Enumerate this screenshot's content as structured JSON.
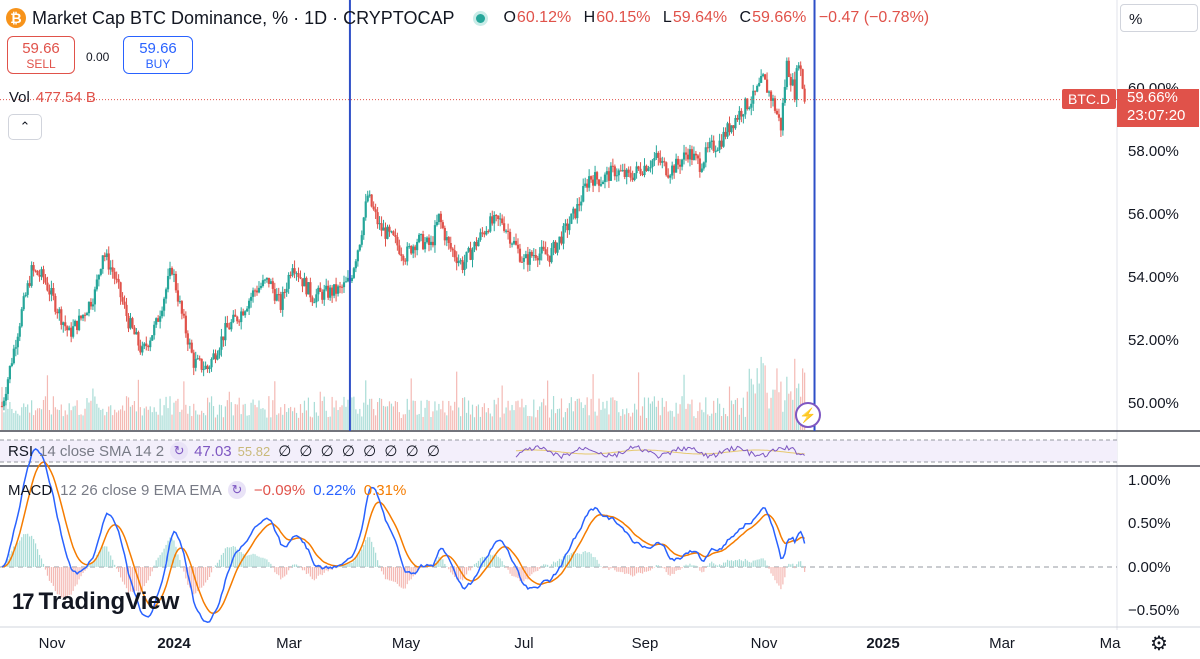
{
  "header": {
    "coin_icon": "bitcoin-icon",
    "coin_glyph": "₿",
    "symbol_title": "Market Cap BTC Dominance, % · 1D · CRYPTOCAP",
    "ohlc": {
      "o_label": "O",
      "o_value": "60.12%",
      "h_label": "H",
      "h_value": "60.15%",
      "l_label": "L",
      "l_value": "59.64%",
      "c_label": "C",
      "c_value": "59.66%",
      "change": "−0.47 (−0.78%)"
    },
    "live_status_color": "#26a69a"
  },
  "trade": {
    "sell_price": "59.66",
    "sell_label": "SELL",
    "spread": "0.00",
    "buy_price": "59.66",
    "buy_label": "BUY"
  },
  "volume": {
    "label": "Vol",
    "value": "477.54 B"
  },
  "collapse_icon": "chevron-up-icon",
  "collapse_glyph": "⌃",
  "scale_unit": "%",
  "price_tag": {
    "symbol": "BTC.D",
    "value": "59.66%",
    "countdown": "23:07:20"
  },
  "y_axis_labels": [
    "60.00%",
    "58.00%",
    "56.00%",
    "54.00%",
    "52.00%",
    "50.00%"
  ],
  "rsi": {
    "title": "RSI",
    "params": "14 close SMA 14 2",
    "value": "47.03",
    "sma_value": "55.82",
    "na_values": "∅ ∅ ∅ ∅ ∅ ∅ ∅ ∅"
  },
  "macd": {
    "title": "MACD",
    "params": "12 26 close 9 EMA EMA",
    "histogram": "−0.09%",
    "macd_line": "0.22%",
    "signal": "0.31%",
    "y_axis_labels": [
      "1.00%",
      "0.50%",
      "0.00%",
      "−0.50%"
    ]
  },
  "brand": {
    "name": "TradingView",
    "glyph": "17"
  },
  "x_axis_labels": [
    {
      "text": "Nov",
      "bold": false
    },
    {
      "text": "2024",
      "bold": true
    },
    {
      "text": "Mar",
      "bold": false
    },
    {
      "text": "May",
      "bold": false
    },
    {
      "text": "Jul",
      "bold": false
    },
    {
      "text": "Sep",
      "bold": false
    },
    {
      "text": "Nov",
      "bold": false
    },
    {
      "text": "2025",
      "bold": true
    },
    {
      "text": "Mar",
      "bold": false
    },
    {
      "text": "Ma",
      "bold": false
    }
  ],
  "settings_icon": "gear-icon",
  "settings_glyph": "⚙",
  "bolt_icon": "lightning-icon",
  "bolt_glyph": "⚡",
  "colors": {
    "up": "#26a69a",
    "down": "#e0524a",
    "macd": "#2962ff",
    "signal": "#f57c00",
    "rsi": "#7e57c2",
    "marker": "#2e4fc7"
  },
  "chart_data": {
    "type": "candlestick",
    "title": "Market Cap BTC Dominance, % · 1D · CRYPTOCAP",
    "x_range": [
      "2023-10-14",
      "2025-05-01"
    ],
    "y_range": [
      49.1,
      61.7
    ],
    "y_unit": "%",
    "close_series": [
      {
        "date": "2023-10-15",
        "value": 49.9
      },
      {
        "date": "2023-10-20",
        "value": 51.4
      },
      {
        "date": "2023-10-25",
        "value": 52.9
      },
      {
        "date": "2023-10-30",
        "value": 54.2
      },
      {
        "date": "2023-11-05",
        "value": 54.0
      },
      {
        "date": "2023-11-12",
        "value": 53.0
      },
      {
        "date": "2023-11-18",
        "value": 52.2
      },
      {
        "date": "2023-11-24",
        "value": 52.7
      },
      {
        "date": "2023-12-01",
        "value": 53.5
      },
      {
        "date": "2023-12-05",
        "value": 54.8
      },
      {
        "date": "2023-12-10",
        "value": 54.2
      },
      {
        "date": "2023-12-18",
        "value": 52.6
      },
      {
        "date": "2023-12-25",
        "value": 51.6
      },
      {
        "date": "2024-01-01",
        "value": 52.5
      },
      {
        "date": "2024-01-09",
        "value": 54.3
      },
      {
        "date": "2024-01-14",
        "value": 52.8
      },
      {
        "date": "2024-01-20",
        "value": 51.3
      },
      {
        "date": "2024-01-27",
        "value": 51.1
      },
      {
        "date": "2024-02-05",
        "value": 52.3
      },
      {
        "date": "2024-02-12",
        "value": 52.8
      },
      {
        "date": "2024-02-20",
        "value": 53.6
      },
      {
        "date": "2024-02-27",
        "value": 53.9
      },
      {
        "date": "2024-03-04",
        "value": 53.1
      },
      {
        "date": "2024-03-10",
        "value": 54.5
      },
      {
        "date": "2024-03-15",
        "value": 53.9
      },
      {
        "date": "2024-03-20",
        "value": 53.4
      },
      {
        "date": "2024-03-27",
        "value": 53.5
      },
      {
        "date": "2024-04-03",
        "value": 53.6
      },
      {
        "date": "2024-04-08",
        "value": 53.9
      },
      {
        "date": "2024-04-13",
        "value": 55.2
      },
      {
        "date": "2024-04-17",
        "value": 56.6
      },
      {
        "date": "2024-04-23",
        "value": 55.6
      },
      {
        "date": "2024-04-30",
        "value": 55.2
      },
      {
        "date": "2024-05-06",
        "value": 54.7
      },
      {
        "date": "2024-05-12",
        "value": 55.2
      },
      {
        "date": "2024-05-19",
        "value": 55.0
      },
      {
        "date": "2024-05-23",
        "value": 55.9
      },
      {
        "date": "2024-05-28",
        "value": 55.0
      },
      {
        "date": "2024-06-04",
        "value": 54.4
      },
      {
        "date": "2024-06-10",
        "value": 55.0
      },
      {
        "date": "2024-06-17",
        "value": 55.7
      },
      {
        "date": "2024-06-24",
        "value": 55.8
      },
      {
        "date": "2024-06-29",
        "value": 55.2
      },
      {
        "date": "2024-07-05",
        "value": 54.5
      },
      {
        "date": "2024-07-11",
        "value": 54.8
      },
      {
        "date": "2024-07-18",
        "value": 54.7
      },
      {
        "date": "2024-07-25",
        "value": 55.4
      },
      {
        "date": "2024-08-01",
        "value": 56.2
      },
      {
        "date": "2024-08-07",
        "value": 57.2
      },
      {
        "date": "2024-08-13",
        "value": 57.1
      },
      {
        "date": "2024-08-20",
        "value": 57.4
      },
      {
        "date": "2024-08-27",
        "value": 57.2
      },
      {
        "date": "2024-09-03",
        "value": 57.5
      },
      {
        "date": "2024-09-10",
        "value": 57.8
      },
      {
        "date": "2024-09-16",
        "value": 57.4
      },
      {
        "date": "2024-09-21",
        "value": 57.6
      },
      {
        "date": "2024-09-26",
        "value": 58.0
      },
      {
        "date": "2024-10-02",
        "value": 57.6
      },
      {
        "date": "2024-10-07",
        "value": 58.1
      },
      {
        "date": "2024-10-12",
        "value": 58.3
      },
      {
        "date": "2024-10-18",
        "value": 58.9
      },
      {
        "date": "2024-10-24",
        "value": 59.4
      },
      {
        "date": "2024-10-29",
        "value": 59.7
      },
      {
        "date": "2024-11-03",
        "value": 60.3
      },
      {
        "date": "2024-11-08",
        "value": 59.6
      },
      {
        "date": "2024-11-12",
        "value": 58.8
      },
      {
        "date": "2024-11-15",
        "value": 60.8
      },
      {
        "date": "2024-11-19",
        "value": 59.9
      },
      {
        "date": "2024-11-21",
        "value": 61.0
      },
      {
        "date": "2024-11-24",
        "value": 59.66
      }
    ],
    "vertical_markers": [
      "2024-04-08",
      "2024-11-29"
    ],
    "last_value": 59.66
  }
}
